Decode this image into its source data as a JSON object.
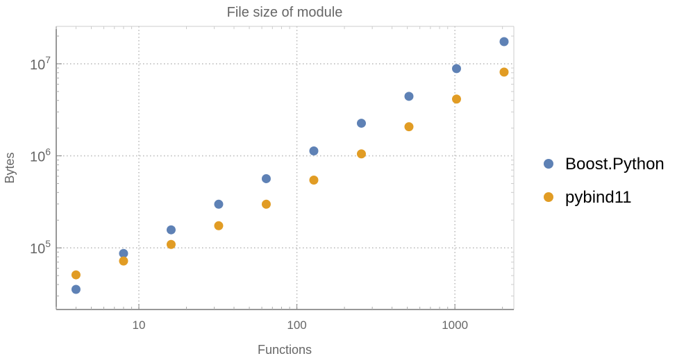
{
  "chart_data": {
    "type": "scatter",
    "title": "File size of module",
    "xlabel": "Functions",
    "ylabel": "Bytes",
    "xscale": "log",
    "yscale": "log",
    "xlim": [
      3.0,
      2360
    ],
    "ylim": [
      21400,
      25500000
    ],
    "grid": true,
    "grid_style": "dotted",
    "legend_placement": "right",
    "x_ticks": [
      {
        "value": 10,
        "label": "10"
      },
      {
        "value": 100,
        "label": "100"
      },
      {
        "value": 1000,
        "label": "1000"
      }
    ],
    "y_ticks": [
      {
        "value": 100000,
        "base": "10",
        "exp": "5"
      },
      {
        "value": 1000000,
        "base": "10",
        "exp": "6"
      },
      {
        "value": 10000000,
        "base": "10",
        "exp": "7"
      }
    ],
    "x": [
      4,
      8,
      16,
      32,
      64,
      128,
      256,
      512,
      1024,
      2048
    ],
    "series": [
      {
        "name": "Boost.Python",
        "color": "#5E81B5",
        "values": [
          35400,
          87000,
          157000,
          298000,
          565000,
          1130000,
          2260000,
          4430000,
          8860000,
          17400000
        ]
      },
      {
        "name": "pybind11",
        "color": "#E19C24",
        "values": [
          50900,
          72000,
          109000,
          174000,
          298000,
          545000,
          1050000,
          2070000,
          4140000,
          8130000
        ]
      }
    ]
  }
}
